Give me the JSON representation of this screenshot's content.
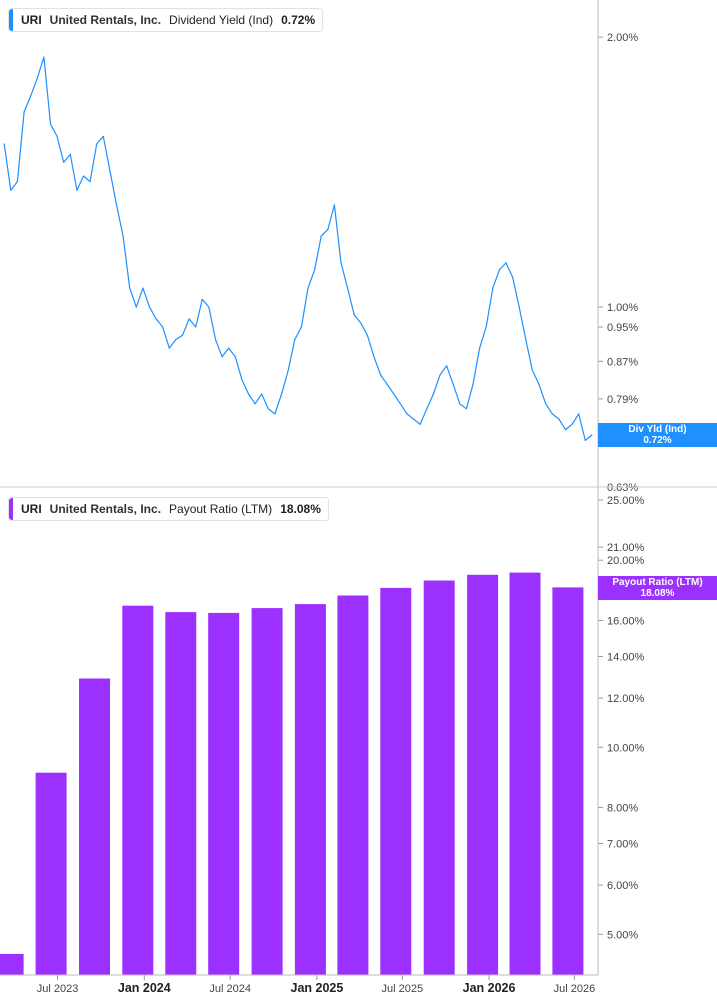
{
  "chart_data": [
    {
      "type": "line",
      "ticker": "URI",
      "company": "United Rentals, Inc.",
      "metric": "Dividend Yield (Ind)",
      "current_value": "0.72%",
      "tag_label": "Div Yld (Ind)",
      "tag_value": "0.72%",
      "color": "#1e90ff",
      "y_scale": "log",
      "ylim": [
        0.63,
        2.2
      ],
      "y_ticks": [
        {
          "value": 2.0,
          "label": "2.00%"
        },
        {
          "value": 1.0,
          "label": "1.00%"
        },
        {
          "value": 0.95,
          "label": "0.95%"
        },
        {
          "value": 0.87,
          "label": "0.87%"
        },
        {
          "value": 0.79,
          "label": "0.79%"
        },
        {
          "value": 0.71,
          "label": "0.71%"
        },
        {
          "value": 0.63,
          "label": "0.63%"
        }
      ],
      "x": [
        "2023-03-10",
        "2023-03-24",
        "2023-04-07",
        "2023-04-21",
        "2023-05-05",
        "2023-05-19",
        "2023-06-02",
        "2023-06-16",
        "2023-06-30",
        "2023-07-14",
        "2023-07-28",
        "2023-08-11",
        "2023-08-25",
        "2023-09-08",
        "2023-09-22",
        "2023-10-06",
        "2023-10-20",
        "2023-11-03",
        "2023-11-17",
        "2023-12-01",
        "2023-12-15",
        "2023-12-29",
        "2024-01-12",
        "2024-01-26",
        "2024-02-09",
        "2024-02-23",
        "2024-03-08",
        "2024-03-22",
        "2024-04-05",
        "2024-04-19",
        "2024-05-03",
        "2024-05-17",
        "2024-05-31",
        "2024-06-14",
        "2024-06-28",
        "2024-07-12",
        "2024-07-26",
        "2024-08-09",
        "2024-08-23",
        "2024-09-06",
        "2024-09-20",
        "2024-10-04",
        "2024-10-18",
        "2024-11-01",
        "2024-11-15",
        "2024-11-29",
        "2024-12-13",
        "2024-12-27",
        "2025-01-10",
        "2025-01-24",
        "2025-02-07",
        "2025-02-21",
        "2025-03-07",
        "2025-03-21",
        "2025-04-04",
        "2025-04-18",
        "2025-05-02",
        "2025-05-16",
        "2025-05-30",
        "2025-06-13",
        "2025-06-27",
        "2025-07-11",
        "2025-07-25",
        "2025-08-08",
        "2025-08-22",
        "2025-09-05",
        "2025-09-19",
        "2025-10-03",
        "2025-10-17",
        "2025-10-31",
        "2025-11-14",
        "2025-11-28",
        "2025-12-12",
        "2025-12-26",
        "2026-01-09",
        "2026-01-23",
        "2026-02-06",
        "2026-02-20",
        "2026-03-06",
        "2026-03-20",
        "2026-04-03",
        "2026-04-17",
        "2026-05-01",
        "2026-05-15",
        "2026-05-29",
        "2026-06-12",
        "2026-06-26",
        "2026-07-10",
        "2026-07-24",
        "2026-08-07"
      ],
      "values": [
        1.52,
        1.35,
        1.38,
        1.65,
        1.72,
        1.8,
        1.9,
        1.6,
        1.55,
        1.45,
        1.48,
        1.35,
        1.4,
        1.38,
        1.52,
        1.55,
        1.42,
        1.3,
        1.2,
        1.05,
        1.0,
        1.05,
        1.0,
        0.97,
        0.95,
        0.9,
        0.92,
        0.93,
        0.97,
        0.95,
        1.02,
        1.0,
        0.92,
        0.88,
        0.9,
        0.88,
        0.83,
        0.8,
        0.78,
        0.8,
        0.77,
        0.76,
        0.8,
        0.85,
        0.92,
        0.95,
        1.05,
        1.1,
        1.2,
        1.22,
        1.3,
        1.12,
        1.05,
        0.98,
        0.96,
        0.93,
        0.88,
        0.84,
        0.82,
        0.8,
        0.78,
        0.76,
        0.75,
        0.74,
        0.77,
        0.8,
        0.84,
        0.86,
        0.82,
        0.78,
        0.77,
        0.82,
        0.9,
        0.95,
        1.05,
        1.1,
        1.12,
        1.08,
        1.0,
        0.92,
        0.85,
        0.82,
        0.78,
        0.76,
        0.75,
        0.73,
        0.74,
        0.76,
        0.71,
        0.72
      ]
    },
    {
      "type": "bar",
      "ticker": "URI",
      "company": "United Rentals, Inc.",
      "metric": "Payout Ratio (LTM)",
      "current_value": "18.08%",
      "tag_label": "Payout Ratio (LTM)",
      "tag_value": "18.08%",
      "color": "#9b30ff",
      "y_scale": "log",
      "ylim": [
        4.3,
        25.0
      ],
      "y_ticks": [
        {
          "value": 25.0,
          "label": "25.00%"
        },
        {
          "value": 21.0,
          "label": "21.00%"
        },
        {
          "value": 20.0,
          "label": "20.00%"
        },
        {
          "value": 18.0,
          "label": "18.00%"
        },
        {
          "value": 16.0,
          "label": "16.00%"
        },
        {
          "value": 14.0,
          "label": "14.00%"
        },
        {
          "value": 12.0,
          "label": "12.00%"
        },
        {
          "value": 10.0,
          "label": "10.00%"
        },
        {
          "value": 8.0,
          "label": "8.00%"
        },
        {
          "value": 7.0,
          "label": "7.00%"
        },
        {
          "value": 6.0,
          "label": "6.00%"
        },
        {
          "value": 5.0,
          "label": "5.00%"
        }
      ],
      "x": [
        "2023-03-31",
        "2023-06-30",
        "2023-09-30",
        "2023-12-31",
        "2024-03-31",
        "2024-06-30",
        "2024-09-30",
        "2024-12-31",
        "2025-03-31",
        "2025-06-30",
        "2025-09-30",
        "2025-12-31",
        "2026-03-31",
        "2026-06-30"
      ],
      "values": [
        4.65,
        9.1,
        12.9,
        16.9,
        16.5,
        16.45,
        16.75,
        17.0,
        17.55,
        18.05,
        18.55,
        18.95,
        19.1,
        18.08
      ]
    }
  ],
  "x_axis": {
    "ticks": [
      {
        "date": "2023-07-01",
        "label": "Jul 2023",
        "bold": false
      },
      {
        "date": "2024-01-01",
        "label": "Jan 2024",
        "bold": true
      },
      {
        "date": "2024-07-01",
        "label": "Jul 2024",
        "bold": false
      },
      {
        "date": "2025-01-01",
        "label": "Jan 2025",
        "bold": true
      },
      {
        "date": "2025-07-01",
        "label": "Jul 2025",
        "bold": false
      },
      {
        "date": "2026-01-01",
        "label": "Jan 2026",
        "bold": true
      },
      {
        "date": "2026-07-01",
        "label": "Jul 2026",
        "bold": false
      }
    ],
    "range": [
      "2023-03-01",
      "2026-08-20"
    ]
  }
}
